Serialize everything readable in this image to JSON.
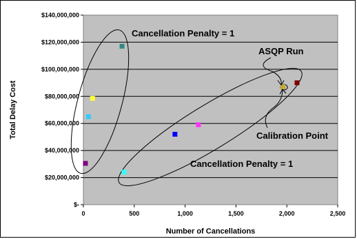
{
  "chart_data": {
    "type": "scatter",
    "xlabel": "Number of Cancellations",
    "ylabel": "Total Delay Cost",
    "xlim": [
      0,
      2500
    ],
    "ylim": [
      0,
      140000000
    ],
    "x_ticks": [
      "0",
      "500",
      "1,000",
      "1,500",
      "2,000",
      "2,500"
    ],
    "y_ticks": [
      "$-",
      "$20,000,000",
      "$40,000,000",
      "$60,000,000",
      "$80,000,000",
      "$100,000,000",
      "$120,000,000",
      "$140,000,000"
    ],
    "grid": "horizontal",
    "plot_background": "#c0c0c0",
    "points": [
      {
        "x": 380,
        "y": 117000000,
        "color": "#2e8b82"
      },
      {
        "x": 90,
        "y": 78500000,
        "color": "#ffff33"
      },
      {
        "x": 50,
        "y": 65000000,
        "color": "#33ccff"
      },
      {
        "x": 20,
        "y": 30500000,
        "color": "#800080"
      },
      {
        "x": 400,
        "y": 24000000,
        "color": "#33ffff"
      },
      {
        "x": 900,
        "y": 52000000,
        "color": "#0000ff"
      },
      {
        "x": 1130,
        "y": 59000000,
        "color": "#ff33ff"
      },
      {
        "x": 1960,
        "y": 87000000,
        "color": "#c8a830"
      },
      {
        "x": 2100,
        "y": 90000000,
        "color": "#800000"
      }
    ],
    "annotations": {
      "penalty_top": "Cancellation Penalty = 1",
      "penalty_bottom": "Cancellation Penalty = 1",
      "asqp": "ASQP Run",
      "calibration": "Calibration Point"
    }
  }
}
